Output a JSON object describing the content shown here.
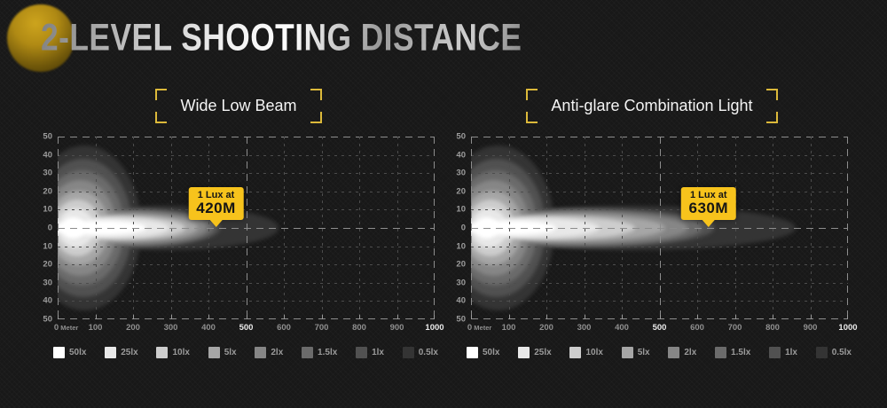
{
  "title": "2-LEVEL SHOOTING DISTANCE",
  "accent_yellow": "#dcb93a",
  "callout_yellow": "#f7c31c",
  "panels": [
    {
      "header": "Wide Low Beam",
      "callout": {
        "line1": "1 Lux at",
        "line2": "420M"
      }
    },
    {
      "header": "Anti-glare Combination Light",
      "callout": {
        "line1": "1 Lux at",
        "line2": "630M"
      }
    }
  ],
  "legend": [
    {
      "label": "50lx",
      "color": "#ffffff"
    },
    {
      "label": "25lx",
      "color": "#e8e8e8"
    },
    {
      "label": "10lx",
      "color": "#cdcdcd"
    },
    {
      "label": "5lx",
      "color": "#a6a6a6"
    },
    {
      "label": "2lx",
      "color": "#868686"
    },
    {
      "label": "1.5lx",
      "color": "#6b6b6b"
    },
    {
      "label": "1lx",
      "color": "#515151"
    },
    {
      "label": "0.5lx",
      "color": "#343434"
    }
  ],
  "chart_data": [
    {
      "type": "heatmap",
      "title": "Wide Low Beam",
      "xlabel": "Meter",
      "xlim": [
        0,
        1000
      ],
      "x_ticks": [
        0,
        100,
        200,
        300,
        400,
        500,
        600,
        700,
        800,
        900,
        1000
      ],
      "x_bold_labels": [
        500,
        1000
      ],
      "x_bold_lines": [
        0,
        500,
        1000
      ],
      "ylim": [
        -50,
        50
      ],
      "y_ticks": [
        50,
        40,
        30,
        20,
        10,
        0,
        10,
        20,
        30,
        40,
        50
      ],
      "y_bold_lines": [
        50,
        0,
        -50
      ],
      "grid": "dashed",
      "annotation": "1 Lux at 420M",
      "annotation_x_m": 420,
      "isolux_layers": [
        {
          "lux": "0.5lx",
          "color": "#343434",
          "reach_m": 585,
          "tail_half_h": 12,
          "blob_cx_m": 72,
          "blob_rx_m": 150,
          "blob_half_h": 45
        },
        {
          "lux": "1lx",
          "color": "#515151",
          "reach_m": 430,
          "tail_half_h": 10.5,
          "blob_cx_m": 68,
          "blob_rx_m": 130,
          "blob_half_h": 38
        },
        {
          "lux": "1.5lx",
          "color": "#6b6b6b",
          "reach_m": 413,
          "tail_half_h": 9.5,
          "blob_cx_m": 64,
          "blob_rx_m": 112,
          "blob_half_h": 31.5
        },
        {
          "lux": "2lx",
          "color": "#868686",
          "reach_m": 396,
          "tail_half_h": 8.5,
          "blob_cx_m": 60,
          "blob_rx_m": 96,
          "blob_half_h": 26
        },
        {
          "lux": "5lx",
          "color": "#a6a6a6",
          "reach_m": 372,
          "tail_half_h": 7.5,
          "blob_cx_m": 56,
          "blob_rx_m": 80,
          "blob_half_h": 20.5
        },
        {
          "lux": "10lx",
          "color": "#cdcdcd",
          "reach_m": 338,
          "tail_half_h": 6.5,
          "blob_cx_m": 52,
          "blob_rx_m": 64,
          "blob_half_h": 15.5
        },
        {
          "lux": "25lx",
          "color": "#e8e8e8",
          "reach_m": 296,
          "tail_half_h": 5.5,
          "blob_cx_m": 48,
          "blob_rx_m": 48,
          "blob_half_h": 10.5
        },
        {
          "lux": "50lx",
          "color": "#ffffff",
          "reach_m": 235,
          "tail_half_h": 4,
          "blob_cx_m": 42,
          "blob_rx_m": 32,
          "blob_half_h": 6
        }
      ]
    },
    {
      "type": "heatmap",
      "title": "Anti-glare Combination Light",
      "xlabel": "Meter",
      "xlim": [
        0,
        1000
      ],
      "x_ticks": [
        0,
        100,
        200,
        300,
        400,
        500,
        600,
        700,
        800,
        900,
        1000
      ],
      "x_bold_labels": [
        500,
        1000
      ],
      "x_bold_lines": [
        0,
        500,
        1000
      ],
      "ylim": [
        -50,
        50
      ],
      "y_ticks": [
        50,
        40,
        30,
        20,
        10,
        0,
        10,
        20,
        30,
        40,
        50
      ],
      "y_bold_lines": [
        50,
        0,
        -50
      ],
      "grid": "dashed",
      "annotation": "1 Lux at 630M",
      "annotation_x_m": 630,
      "isolux_layers": [
        {
          "lux": "0.5lx",
          "color": "#343434",
          "reach_m": 860,
          "tail_half_h": 12,
          "blob_cx_m": 72,
          "blob_rx_m": 150,
          "blob_half_h": 45
        },
        {
          "lux": "1lx",
          "color": "#515151",
          "reach_m": 645,
          "tail_half_h": 10.5,
          "blob_cx_m": 68,
          "blob_rx_m": 130,
          "blob_half_h": 38
        },
        {
          "lux": "1.5lx",
          "color": "#6b6b6b",
          "reach_m": 612,
          "tail_half_h": 9.5,
          "blob_cx_m": 64,
          "blob_rx_m": 112,
          "blob_half_h": 31.5
        },
        {
          "lux": "2lx",
          "color": "#868686",
          "reach_m": 575,
          "tail_half_h": 8.5,
          "blob_cx_m": 60,
          "blob_rx_m": 96,
          "blob_half_h": 26
        },
        {
          "lux": "5lx",
          "color": "#a6a6a6",
          "reach_m": 515,
          "tail_half_h": 7.5,
          "blob_cx_m": 56,
          "blob_rx_m": 80,
          "blob_half_h": 20.5
        },
        {
          "lux": "10lx",
          "color": "#cdcdcd",
          "reach_m": 435,
          "tail_half_h": 6.5,
          "blob_cx_m": 52,
          "blob_rx_m": 64,
          "blob_half_h": 15.5
        },
        {
          "lux": "25lx",
          "color": "#e8e8e8",
          "reach_m": 340,
          "tail_half_h": 5.5,
          "blob_cx_m": 48,
          "blob_rx_m": 48,
          "blob_half_h": 10.5
        },
        {
          "lux": "50lx",
          "color": "#ffffff",
          "reach_m": 225,
          "tail_half_h": 4,
          "blob_cx_m": 42,
          "blob_rx_m": 32,
          "blob_half_h": 6
        }
      ]
    }
  ]
}
